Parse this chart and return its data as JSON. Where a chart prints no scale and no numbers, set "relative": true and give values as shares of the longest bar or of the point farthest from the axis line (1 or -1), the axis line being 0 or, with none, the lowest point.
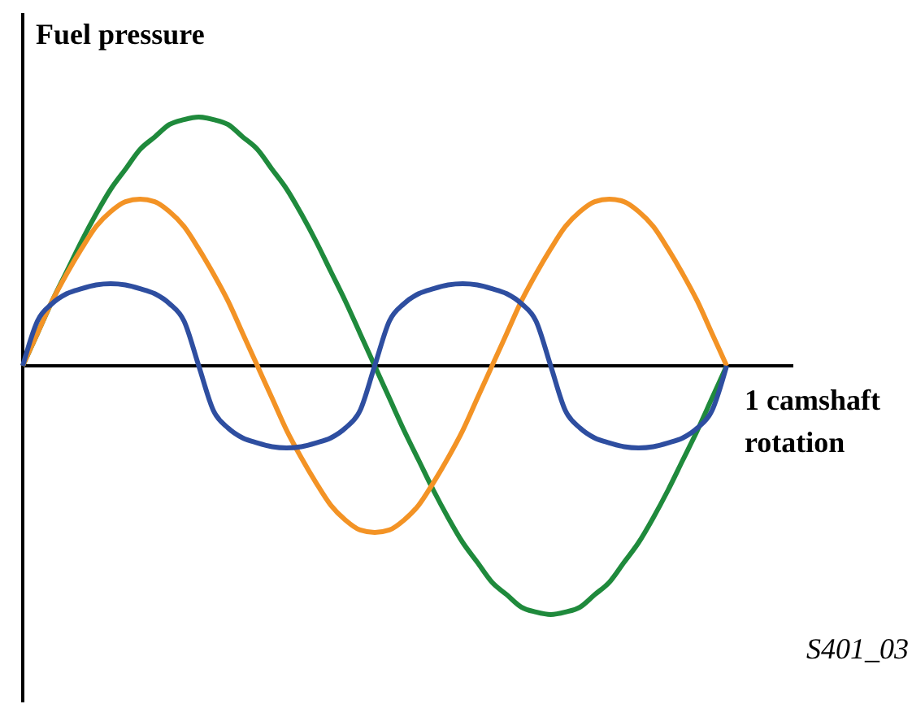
{
  "chart_data": {
    "type": "line",
    "relative": true,
    "ylabel": "Fuel pressure",
    "xlabel": "1 camshaft rotation",
    "categories": [
      null,
      null,
      null,
      null,
      null,
      null,
      null,
      null,
      null,
      null,
      null,
      null,
      null,
      null,
      null,
      null,
      null,
      null,
      null,
      null,
      null,
      null,
      null,
      null,
      null,
      null,
      null,
      null,
      null,
      null,
      null,
      null,
      null,
      null,
      null,
      null,
      null,
      null,
      null,
      null,
      null,
      null,
      null,
      null,
      null,
      null,
      null,
      null,
      null
    ],
    "series": [
      {
        "color": "#1f8a3c",
        "values": [
          0,
          0.13,
          0.26,
          0.38,
          0.5,
          0.61,
          0.71,
          0.79,
          0.87,
          0.92,
          0.97,
          0.99,
          1,
          0.99,
          0.97,
          0.92,
          0.87,
          0.79,
          0.71,
          0.61,
          0.5,
          0.38,
          0.26,
          0.13,
          0,
          -0.13,
          -0.26,
          -0.38,
          -0.5,
          -0.61,
          -0.71,
          -0.79,
          -0.87,
          -0.92,
          -0.97,
          -0.99,
          -1,
          -0.99,
          -0.97,
          -0.92,
          -0.87,
          -0.79,
          -0.71,
          -0.61,
          -0.5,
          -0.38,
          -0.26,
          -0.13,
          0
        ]
      },
      {
        "color": "#f39325",
        "values": [
          0,
          0.13,
          0.26,
          0.37,
          0.47,
          0.56,
          0.62,
          0.66,
          0.67,
          0.66,
          0.62,
          0.56,
          0.47,
          0.37,
          0.26,
          0.13,
          0,
          -0.13,
          -0.26,
          -0.37,
          -0.47,
          -0.56,
          -0.62,
          -0.66,
          -0.67,
          -0.66,
          -0.62,
          -0.56,
          -0.47,
          -0.37,
          -0.26,
          -0.13,
          0,
          0.13,
          0.26,
          0.37,
          0.47,
          0.56,
          0.62,
          0.66,
          0.67,
          0.66,
          0.62,
          0.56,
          0.47,
          0.37,
          0.26,
          0.13,
          0
        ]
      },
      {
        "color": "#2e4ea0",
        "values": [
          0,
          0.18,
          0.25,
          0.29,
          0.31,
          0.325,
          0.33,
          0.325,
          0.31,
          0.29,
          0.25,
          0.18,
          0,
          -0.18,
          -0.25,
          -0.29,
          -0.31,
          -0.325,
          -0.33,
          -0.325,
          -0.31,
          -0.29,
          -0.25,
          -0.18,
          0,
          0.18,
          0.25,
          0.29,
          0.31,
          0.325,
          0.33,
          0.325,
          0.31,
          0.29,
          0.25,
          0.18,
          0,
          -0.18,
          -0.25,
          -0.29,
          -0.31,
          -0.325,
          -0.33,
          -0.325,
          -0.31,
          -0.29,
          -0.25,
          -0.18,
          0
        ]
      }
    ],
    "annotations": [
      "S401_03"
    ]
  }
}
